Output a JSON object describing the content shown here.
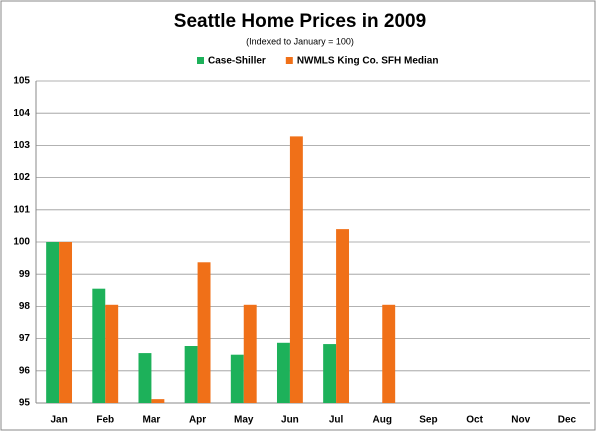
{
  "chart_data": {
    "type": "bar",
    "title": "Seattle Home Prices in 2009",
    "subtitle": "(Indexed to January = 100)",
    "categories": [
      "Jan",
      "Feb",
      "Mar",
      "Apr",
      "May",
      "Jun",
      "Jul",
      "Aug",
      "Sep",
      "Oct",
      "Nov",
      "Dec"
    ],
    "series": [
      {
        "name": "Case-Shiller",
        "color": "#1db15a",
        "values": [
          100,
          98.55,
          96.55,
          96.77,
          96.5,
          96.87,
          96.83,
          null,
          null,
          null,
          null,
          null
        ]
      },
      {
        "name": "NWMLS King Co. SFH Median",
        "color": "#f07018",
        "values": [
          100,
          98.05,
          95.12,
          99.37,
          98.05,
          103.28,
          100.4,
          98.05,
          null,
          null,
          null,
          null
        ]
      }
    ],
    "ylim": [
      95,
      105
    ],
    "yticks": [
      95,
      96,
      97,
      98,
      99,
      100,
      101,
      102,
      103,
      104,
      105
    ],
    "grid": true
  }
}
